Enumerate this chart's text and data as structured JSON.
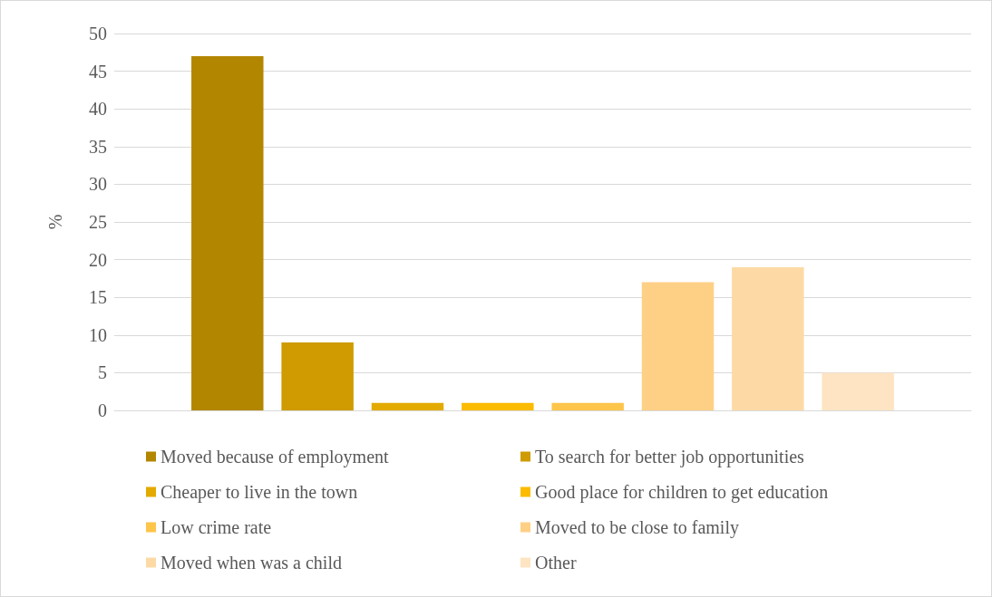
{
  "chart_data": {
    "type": "bar",
    "ylabel": "%",
    "categories": [
      null
    ],
    "series": [
      {
        "name": "Moved because of employment",
        "color": "#b38600",
        "values": [
          47
        ]
      },
      {
        "name": "To search for better job opportunities",
        "color": "#cf9b00",
        "values": [
          9
        ]
      },
      {
        "name": "Cheaper to live in the town",
        "color": "#e3aa00",
        "values": [
          1
        ]
      },
      {
        "name": "Good place for children to get education",
        "color": "#fbbb00",
        "values": [
          1
        ]
      },
      {
        "name": "Low crime rate",
        "color": "#fec54b",
        "values": [
          1
        ]
      },
      {
        "name": "Moved to be close to family",
        "color": "#fed086",
        "values": [
          17
        ]
      },
      {
        "name": "Moved when was a child",
        "color": "#fddaa5",
        "values": [
          19
        ]
      },
      {
        "name": "Other",
        "color": "#fee4c3",
        "values": [
          5
        ]
      }
    ],
    "ylim": [
      0,
      50
    ],
    "yticks": [
      0,
      5,
      10,
      15,
      20,
      25,
      30,
      35,
      40,
      45,
      50
    ],
    "grid": "y",
    "legend": "bottom"
  }
}
